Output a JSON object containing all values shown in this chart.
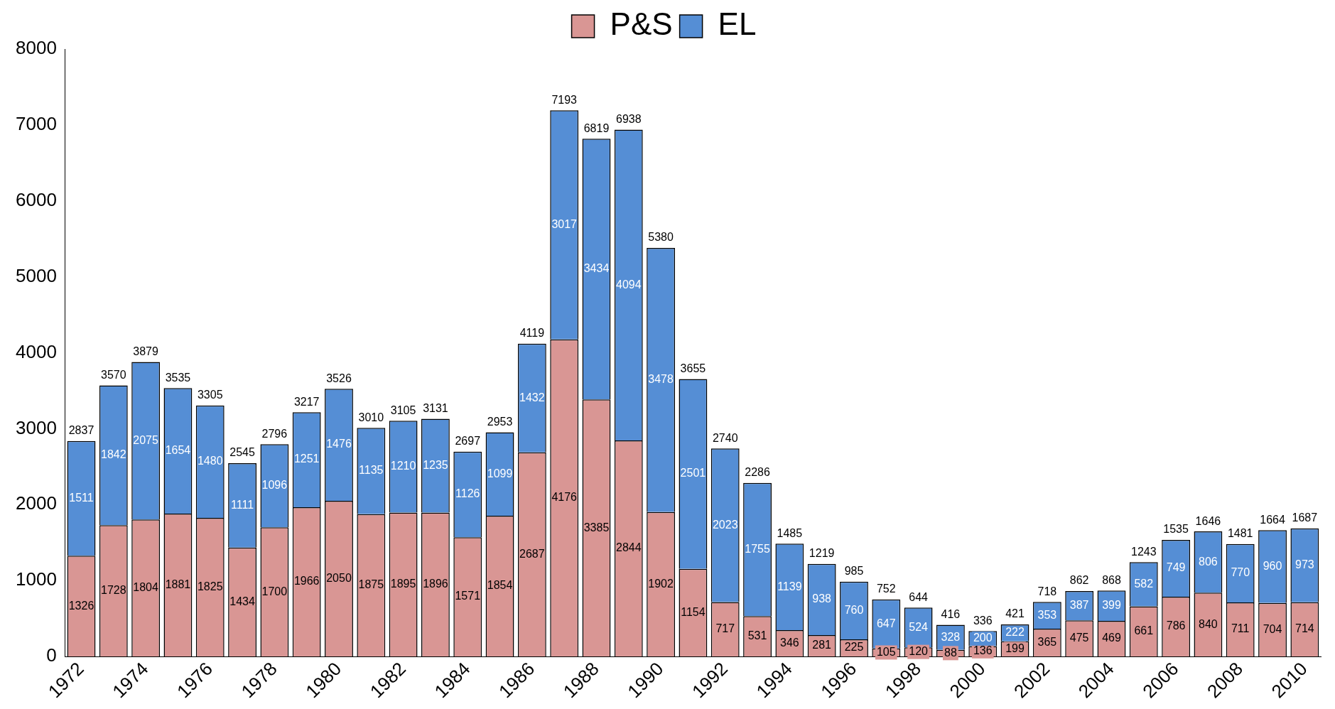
{
  "chart_data": {
    "type": "bar",
    "stacked": true,
    "data_labels": true,
    "legend": "top",
    "grid": false,
    "categories": [
      "1972",
      null,
      "1974",
      null,
      "1976",
      null,
      "1978",
      null,
      "1980",
      null,
      "1982",
      null,
      "1984",
      null,
      "1986",
      null,
      "1988",
      null,
      "1990",
      null,
      "1992",
      null,
      "1994",
      null,
      "1996",
      null,
      "1998",
      null,
      "2000",
      null,
      "2002",
      null,
      "2004",
      null,
      "2006",
      null,
      "2008",
      null,
      "2010"
    ],
    "series": [
      {
        "name": "P&S",
        "color": "#d99694",
        "values": [
          1326,
          1728,
          1804,
          1881,
          1825,
          1434,
          1700,
          1966,
          2050,
          1875,
          1895,
          1896,
          1571,
          1854,
          2687,
          4176,
          3385,
          2844,
          1902,
          1154,
          717,
          531,
          346,
          281,
          225,
          105,
          120,
          88,
          136,
          199,
          365,
          475,
          469,
          661,
          786,
          840,
          711,
          704,
          714
        ]
      },
      {
        "name": "EL",
        "color": "#558ed5",
        "values": [
          1511,
          1842,
          2075,
          1654,
          1480,
          1111,
          1096,
          1251,
          1476,
          1135,
          1210,
          1235,
          1126,
          1099,
          1432,
          3017,
          3434,
          4094,
          3478,
          2501,
          2023,
          1755,
          1139,
          938,
          760,
          647,
          524,
          328,
          200,
          222,
          353,
          387,
          399,
          582,
          749,
          806,
          770,
          960,
          973
        ]
      }
    ],
    "totals": [
      "2837",
      "3570",
      "3879",
      "3535",
      "3305",
      "2545",
      "2796",
      "3217",
      "3526",
      "3010",
      "3105",
      "3131",
      "2697",
      "2953",
      "4119",
      "7193",
      "6819",
      "6938",
      "5380",
      "3655",
      "2740",
      "2286",
      "1485",
      "1219",
      "985",
      "752",
      "644",
      "416",
      "336",
      "421",
      "718",
      "862",
      "868",
      "1243",
      "1535",
      "1646",
      "1481",
      "1664",
      "1687"
    ],
    "ylim": [
      0,
      8000
    ],
    "yticks": [
      0,
      1000,
      2000,
      3000,
      4000,
      5000,
      6000,
      7000,
      8000
    ]
  }
}
